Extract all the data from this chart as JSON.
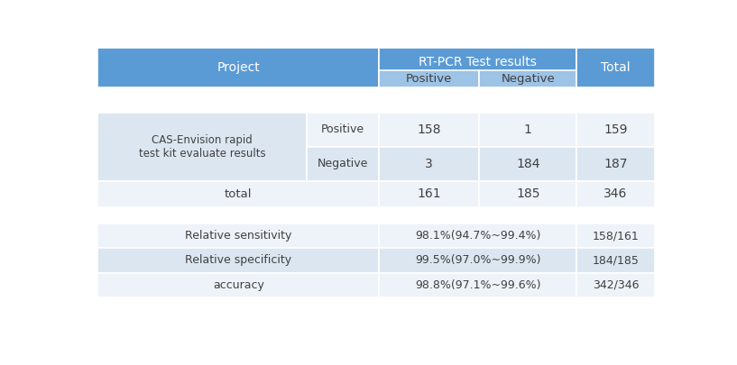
{
  "header_bg": "#5b9bd5",
  "header_text_color": "#ffffff",
  "subheader_bg": "#9dc3e6",
  "row_bg_light": "#dce6f1",
  "row_bg_white": "#eef3fa",
  "cell_text_color": "#404040",
  "fig_bg": "#ffffff",
  "data": {
    "pos_pos": "158",
    "pos_neg": "1",
    "pos_total": "159",
    "neg_pos": "3",
    "neg_neg": "184",
    "neg_total": "187",
    "total_pos": "161",
    "total_neg": "185",
    "total_total": "346"
  },
  "stats": [
    {
      "label": "Relative sensitivity",
      "value1": "98.1%(94.7%~99.4%)",
      "value2": "158/161",
      "bg": "#eef3fa"
    },
    {
      "label": "Relative specificity",
      "value1": "99.5%(97.0%~99.9%)",
      "value2": "184/185",
      "bg": "#dce6f1"
    },
    {
      "label": "accuracy",
      "value1": "98.8%(97.1%~99.6%)",
      "value2": "342/346",
      "bg": "#eef3fa"
    }
  ],
  "figsize": [
    8.17,
    4.05
  ],
  "dpi": 100
}
